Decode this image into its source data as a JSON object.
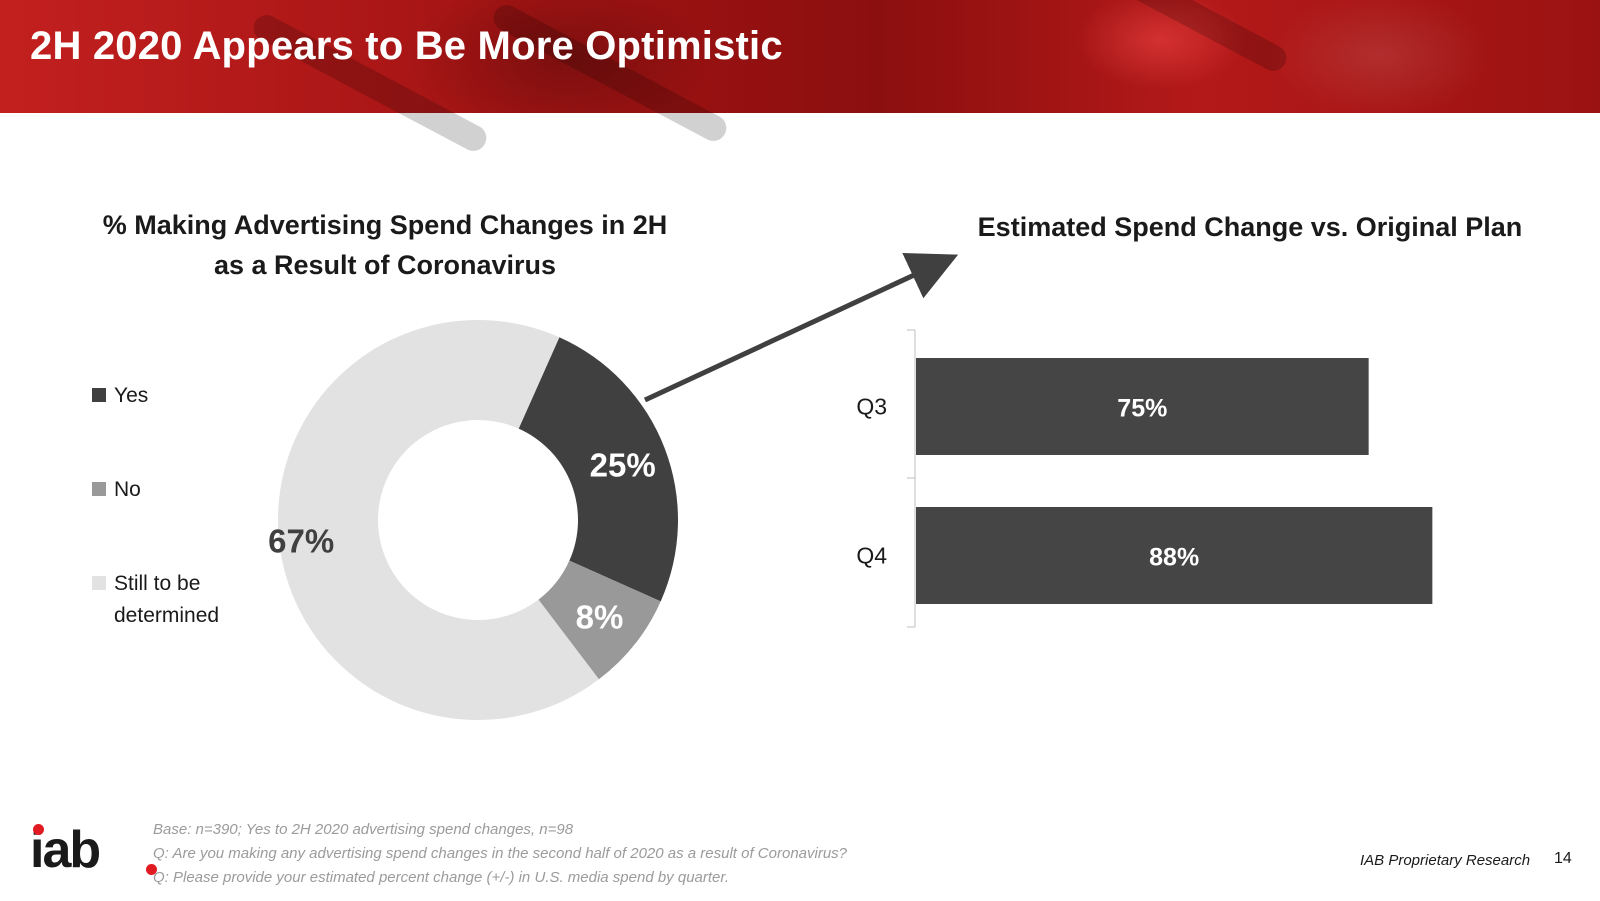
{
  "header": {
    "title": "2H 2020 Appears to Be More Optimistic"
  },
  "colors": {
    "yes": "#404040",
    "no": "#999999",
    "tbd": "#e2e2e2",
    "bar": "#454545",
    "brand_red": "#e11b22"
  },
  "chart_data": [
    {
      "type": "pie",
      "subtype": "donut",
      "title": "% Making Advertising Spend Changes in 2H as a Result of Coronavirus",
      "title_lines": [
        "% Making Advertising Spend Changes in 2H",
        "as a Result of Coronavirus"
      ],
      "categories": [
        "Yes",
        "No",
        "Still to be determined"
      ],
      "values": [
        25,
        8,
        67
      ],
      "labels": [
        "25%",
        "8%",
        "67%"
      ],
      "legend": {
        "placement": "left",
        "items": [
          {
            "label": "Yes",
            "lines": [
              "Yes"
            ]
          },
          {
            "label": "No",
            "lines": [
              "No"
            ]
          },
          {
            "label": "Still to be determined",
            "lines": [
              "Still to be",
              "determined"
            ]
          }
        ]
      }
    },
    {
      "type": "bar",
      "orientation": "horizontal",
      "title": "Estimated Spend Change vs. Original Plan",
      "categories": [
        "Q3",
        "Q4"
      ],
      "values": [
        75,
        88
      ],
      "labels": [
        "75%",
        "88%"
      ],
      "xlim": [
        0,
        100
      ]
    }
  ],
  "footer": {
    "notes": [
      "Base: n=390; Yes to 2H 2020 advertising spend changes, n=98",
      "Q: Are you making any advertising spend changes in the second half of 2020 as a result of Coronavirus?",
      "Q: Please provide your estimated percent change (+/-) in U.S. media spend by quarter."
    ],
    "source": "IAB Proprietary Research",
    "page_number": "14"
  },
  "logo": {
    "text": "iab"
  }
}
